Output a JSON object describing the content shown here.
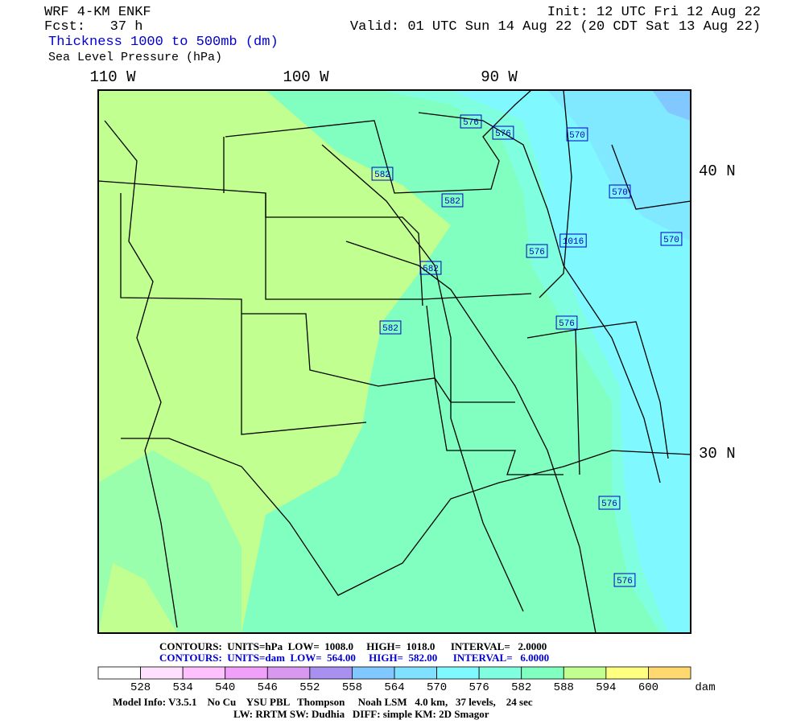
{
  "header": {
    "model": "WRF 4-KM ENKF",
    "forecast": "Fcst:   37 h",
    "init": "Init: 12 UTC Fri 12 Aug 22",
    "valid": "Valid: 01 UTC Sun 14 Aug 22 (20 CDT Sat 13 Aug 22)",
    "field1": "Thickness 1000 to 500mb (dm)",
    "field2": "Sea Level Pressure (hPa)"
  },
  "map": {
    "lon_labels": [
      "110 W",
      "100 W",
      "90 W"
    ],
    "lat_labels": [
      "40 N",
      "30 N"
    ],
    "contour_labels": [
      "576",
      "576",
      "570",
      "582",
      "582",
      "570",
      "1016",
      "570",
      "576",
      "582",
      "576",
      "582",
      "576",
      "576"
    ]
  },
  "contour_info": [
    "CONTOURS:  UNITS=hPa  LOW=  1008.0     HIGH=  1018.0      INTERVAL=   2.0000",
    "CONTOURS:  UNITS=dam  LOW=  564.00     HIGH=  582.00      INTERVAL=   6.0000"
  ],
  "colorbar": {
    "colors": [
      "#ffffff",
      "#ffe0ff",
      "#ffc0ff",
      "#f0a0f8",
      "#d898f0",
      "#a890f0",
      "#80c8ff",
      "#80e0ff",
      "#80f8ff",
      "#80ffe0",
      "#80ffc0",
      "#c0ff90",
      "#ffff80",
      "#ffd870"
    ],
    "labels": [
      "528",
      "534",
      "540",
      "546",
      "552",
      "558",
      "564",
      "570",
      "576",
      "582",
      "588",
      "594",
      "600"
    ],
    "unit": "dam"
  },
  "model_info": [
    "Model Info: V3.5.1    No Cu    YSU PBL   Thompson     Noah LSM   4.0 km,   37 levels,    24 sec",
    "LW: RRTM SW: Dudhia   DIFF: simple KM: 2D Smagor"
  ]
}
